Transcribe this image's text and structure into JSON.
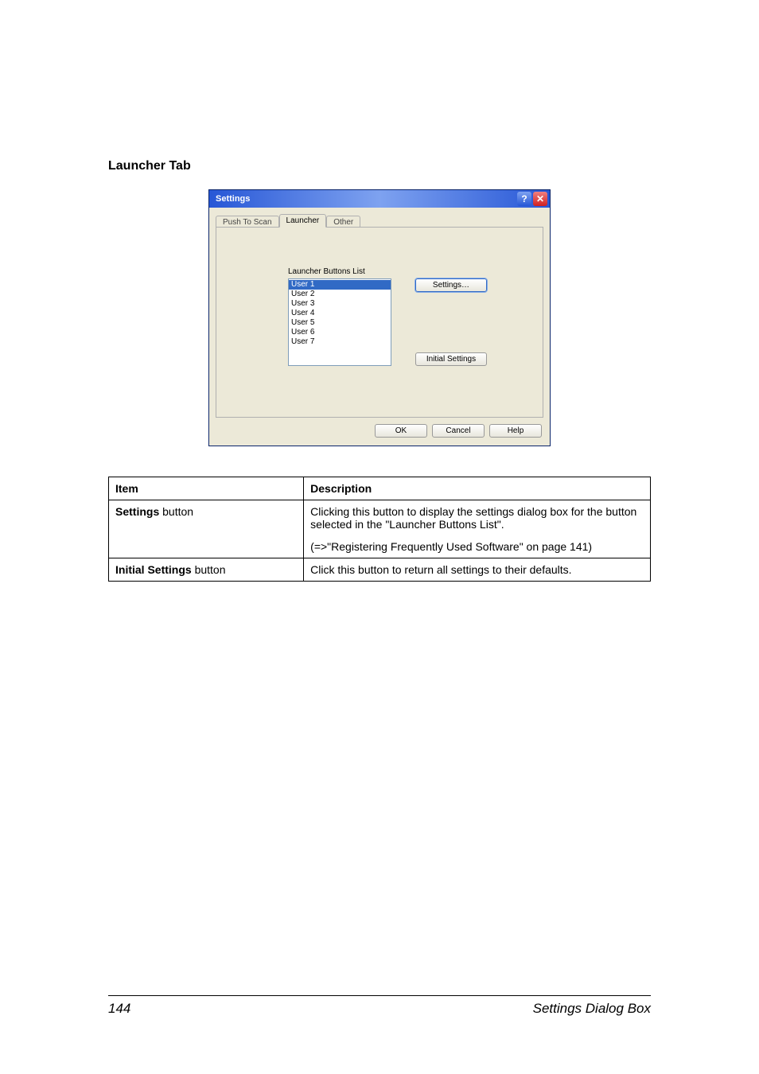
{
  "heading": "Launcher Tab",
  "dialog": {
    "title": "Settings",
    "help_glyph": "?",
    "close_glyph": "✕",
    "tabs": {
      "push": "Push To Scan",
      "launcher": "Launcher",
      "other": "Other"
    },
    "list_label": "Launcher Buttons List",
    "list_items": [
      "User 1",
      "User 2",
      "User 3",
      "User 4",
      "User 5",
      "User 6",
      "User 7"
    ],
    "buttons": {
      "settings": "Settings…",
      "initial": "Initial Settings",
      "ok": "OK",
      "cancel": "Cancel",
      "help": "Help"
    }
  },
  "table": {
    "header_item": "Item",
    "header_desc": "Description",
    "rows": [
      {
        "item": "Settings button",
        "item_prefix": "Settings",
        "item_suffix": " button",
        "desc1": "Clicking this button to display the settings dialog box for the button selected in the \"Launcher Buttons List\".",
        "desc2": "(=>\"Registering Frequently Used Software\" on page 141)"
      },
      {
        "item": "Initial Settings button",
        "item_prefix": "Initial Settings",
        "item_suffix": " button",
        "desc": "Click this button to return all settings to their defaults."
      }
    ]
  },
  "footer": {
    "page": "144",
    "section": "Settings Dialog Box"
  }
}
